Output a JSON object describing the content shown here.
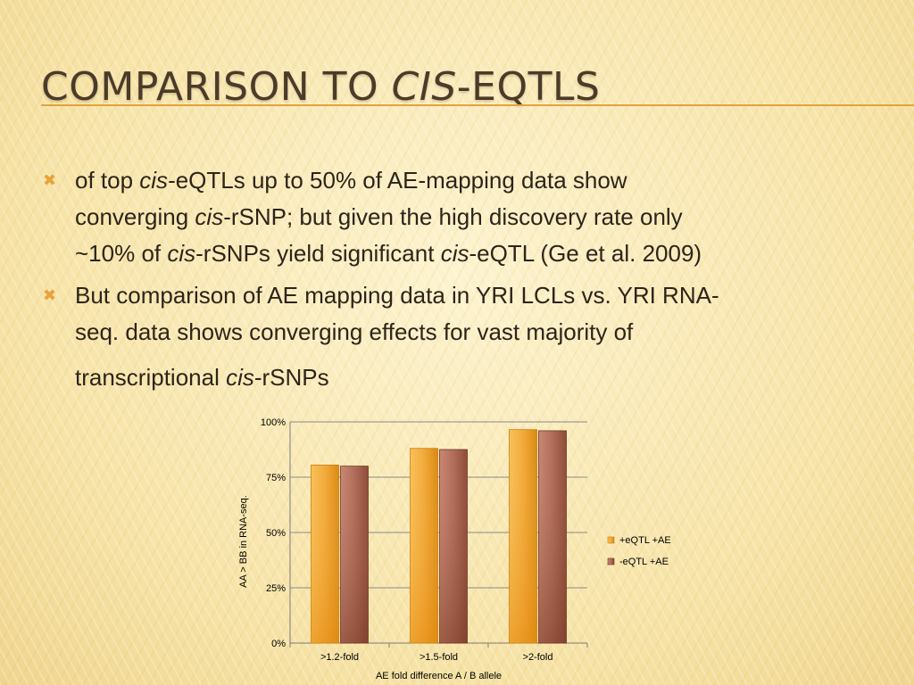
{
  "slide": {
    "title_prefix": "COMPARISON TO ",
    "title_italic": "CIS",
    "title_suffix": "-EQTLS"
  },
  "bullets": [
    {
      "line1_a": "of top ",
      "line1_i": "cis",
      "line1_b": "-eQTLs up to 50% of AE-mapping data show",
      "line2_a": "converging ",
      "line2_i": "cis",
      "line2_b": "-rSNP; but given the high discovery rate only",
      "line3_a": "~10% of ",
      "line3_i": "cis",
      "line3_b": "-rSNPs yield significant ",
      "line3_i2": "cis",
      "line3_c": "-eQTL (Ge et al. 2009)"
    },
    {
      "line1": "But comparison of AE mapping data in YRI LCLs vs. YRI RNA-",
      "line2": "seq. data shows converging effects for vast majority of",
      "line3_a": "transcriptional ",
      "line3_i": "cis",
      "line3_b": "-rSNPs"
    }
  ],
  "colors": {
    "title": "#4a3b2a",
    "accent": "#e0a440",
    "series_1": "#f0a030",
    "series_2": "#a0503a"
  },
  "chart_data": {
    "type": "bar",
    "categories": [
      ">1.2-fold",
      ">1.5-fold",
      ">2-fold"
    ],
    "series": [
      {
        "name": "+eQTL +AE",
        "values": [
          80.5,
          88,
          96.5
        ]
      },
      {
        "name": "-eQTL +AE",
        "values": [
          80,
          87.5,
          96
        ]
      }
    ],
    "xlabel": "AE fold difference A / B allele",
    "ylabel": "AA > BB in RNA-seq.",
    "ylim": [
      0,
      100
    ],
    "yticks": [
      "0%",
      "25%",
      "50%",
      "75%",
      "100%"
    ],
    "ytick_values": [
      0,
      25,
      50,
      75,
      100
    ],
    "grid": true,
    "legend": "right"
  }
}
